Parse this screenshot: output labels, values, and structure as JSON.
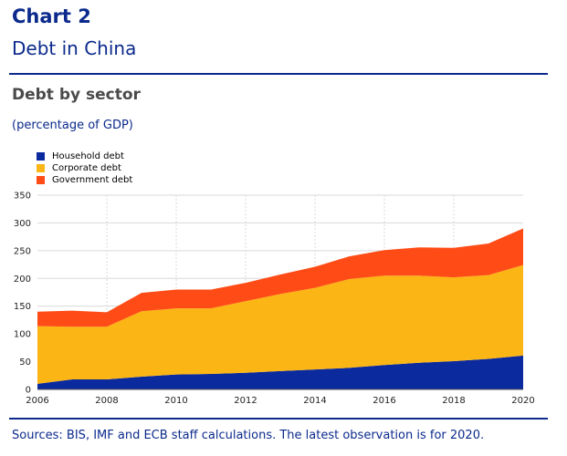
{
  "header": {
    "chart_number": "Chart 2",
    "title": "Debt in China"
  },
  "subtitle": "Debt by sector",
  "unit_label": "(percentage of GDP)",
  "sources": "Sources: BIS, IMF and ECB staff calculations. The latest observation is for 2020.",
  "chart_data": {
    "type": "area",
    "stacked": true,
    "title": "Debt by sector",
    "ylabel": "(percentage of GDP)",
    "x": [
      2006,
      2007,
      2008,
      2009,
      2010,
      2011,
      2012,
      2013,
      2014,
      2015,
      2016,
      2017,
      2018,
      2019,
      2020
    ],
    "xticks": [
      "2006",
      "2008",
      "2010",
      "2012",
      "2014",
      "2016",
      "2018",
      "2020"
    ],
    "yticks": [
      "0",
      "50",
      "100",
      "150",
      "200",
      "250",
      "300",
      "350"
    ],
    "ylim": [
      0,
      350
    ],
    "xlim": [
      2006,
      2020
    ],
    "grid": true,
    "legend_position": "top-left",
    "series": [
      {
        "name": "Household debt",
        "color": "#0b2a9e",
        "values": [
          10,
          18,
          18,
          23,
          27,
          28,
          30,
          33,
          36,
          39,
          44,
          48,
          51,
          55,
          61
        ]
      },
      {
        "name": "Corporate debt",
        "color": "#fbb515",
        "values": [
          104,
          95,
          95,
          118,
          119,
          118,
          129,
          139,
          147,
          160,
          161,
          157,
          151,
          151,
          163
        ]
      },
      {
        "name": "Government debt",
        "color": "#ff4c17",
        "values": [
          26,
          29,
          26,
          33,
          34,
          34,
          33,
          35,
          38,
          41,
          46,
          51,
          53,
          57,
          66
        ]
      }
    ]
  }
}
